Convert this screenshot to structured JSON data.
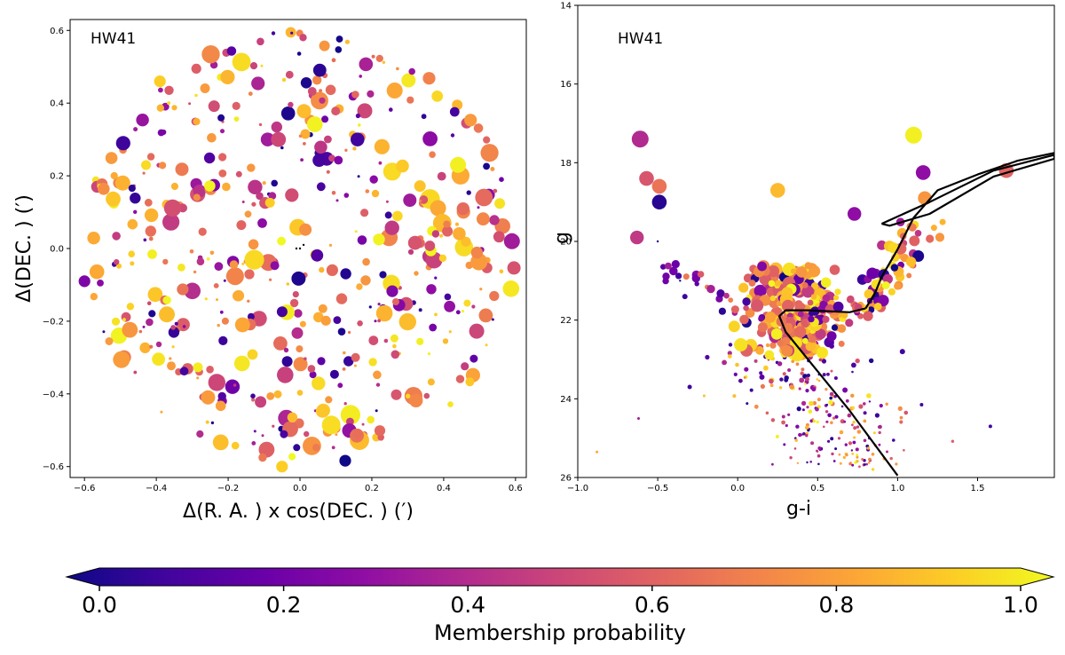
{
  "chart_data": [
    {
      "type": "scatter",
      "panel": "left",
      "title": "HW41",
      "xlabel": "Δ(R. A. ) x cos(DEC. ) (′)",
      "ylabel": "Δ(DEC. ) (′)",
      "xlim": [
        -0.64,
        0.63
      ],
      "ylim": [
        -0.63,
        0.63
      ],
      "xticks": [
        -0.6,
        -0.4,
        -0.2,
        0.0,
        0.2,
        0.4,
        0.6
      ],
      "xtick_labels": [
        "−0.6",
        "−0.4",
        "−0.2",
        "0.0",
        "0.2",
        "0.4",
        "0.6"
      ],
      "yticks": [
        -0.6,
        -0.4,
        -0.2,
        0.0,
        0.2,
        0.4,
        0.6
      ],
      "ytick_labels": [
        "−0.6",
        "−0.4",
        "−0.2",
        "0.0",
        "0.2",
        "0.4",
        "0.6"
      ],
      "field_radius": 0.6,
      "n_points": 520,
      "color_by": "Membership probability",
      "highlighted_points": [
        {
          "x": 0.59,
          "y": 0.02,
          "prob": 0.35,
          "size": 1.0
        },
        {
          "x": -0.6,
          "y": -0.09,
          "prob": 0.25,
          "size": 0.6
        },
        {
          "x": 0.44,
          "y": 0.23,
          "prob": 0.98,
          "size": 1.0
        },
        {
          "x": 0.16,
          "y": 0.3,
          "prob": 0.1,
          "size": 0.8
        },
        {
          "x": -0.09,
          "y": 0.3,
          "prob": 0.35,
          "size": 0.8
        },
        {
          "x": -0.06,
          "y": 0.3,
          "prob": 0.5,
          "size": 0.9
        },
        {
          "x": -0.39,
          "y": 0.46,
          "prob": 0.9,
          "size": 0.6
        },
        {
          "x": -0.16,
          "y": -0.21,
          "prob": 0.8,
          "size": 0.9
        },
        {
          "x": -0.05,
          "y": -0.6,
          "prob": 0.9,
          "size": 0.6
        }
      ]
    },
    {
      "type": "scatter",
      "panel": "right",
      "title": "HW41",
      "xlabel": "g-i",
      "ylabel": "g",
      "xlim": [
        -1.0,
        1.98
      ],
      "ylim": [
        26,
        14
      ],
      "y_inverted": true,
      "xticks": [
        -1.0,
        -0.5,
        0.0,
        0.5,
        1.0,
        1.5
      ],
      "xtick_labels": [
        "−1.0",
        "−0.5",
        "0.0",
        "0.5",
        "1.0",
        "1.5"
      ],
      "yticks": [
        14,
        16,
        18,
        20,
        22,
        24,
        26
      ],
      "ytick_labels": [
        "14",
        "16",
        "18",
        "20",
        "22",
        "24",
        "26"
      ],
      "color_by": "Membership probability",
      "highlighted_points": [
        {
          "x": -0.61,
          "y": 17.4,
          "prob": 0.4,
          "size": 1.0
        },
        {
          "x": -0.57,
          "y": 18.4,
          "prob": 0.55,
          "size": 0.8
        },
        {
          "x": -0.49,
          "y": 18.6,
          "prob": 0.65,
          "size": 0.8
        },
        {
          "x": -0.49,
          "y": 19.0,
          "prob": 0.05,
          "size": 0.8
        },
        {
          "x": -0.63,
          "y": 19.9,
          "prob": 0.45,
          "size": 0.7
        },
        {
          "x": 0.25,
          "y": 18.7,
          "prob": 0.85,
          "size": 0.8
        },
        {
          "x": 1.1,
          "y": 17.3,
          "prob": 0.98,
          "size": 1.0
        },
        {
          "x": 1.16,
          "y": 18.25,
          "prob": 0.3,
          "size": 0.8
        },
        {
          "x": 1.68,
          "y": 18.2,
          "prob": 0.6,
          "size": 0.8
        },
        {
          "x": 0.73,
          "y": 19.3,
          "prob": 0.3,
          "size": 0.7
        },
        {
          "x": 1.17,
          "y": 18.9,
          "prob": 0.75,
          "size": 0.7
        }
      ],
      "isochrone": {
        "ms_branch": [
          [
            1.0,
            25.95
          ],
          [
            0.7,
            24.3
          ],
          [
            0.48,
            23.2
          ],
          [
            0.3,
            22.3
          ],
          [
            0.26,
            21.9
          ],
          [
            0.3,
            21.75
          ],
          [
            0.45,
            21.75
          ],
          [
            0.7,
            21.8
          ],
          [
            0.8,
            21.7
          ]
        ],
        "rgb_branch": [
          [
            0.8,
            21.7
          ],
          [
            0.86,
            21.3
          ],
          [
            0.9,
            20.9
          ],
          [
            1.0,
            20.2
          ],
          [
            1.1,
            19.4
          ],
          [
            1.25,
            18.7
          ],
          [
            1.5,
            18.3
          ],
          [
            1.75,
            17.95
          ],
          [
            1.98,
            17.75
          ]
        ],
        "bump_loop": [
          [
            0.9,
            19.55
          ],
          [
            1.2,
            19.0
          ],
          [
            1.6,
            18.2
          ],
          [
            1.98,
            17.8
          ],
          [
            1.98,
            17.9
          ],
          [
            1.6,
            18.35
          ],
          [
            1.2,
            19.3
          ],
          [
            0.95,
            19.6
          ],
          [
            0.9,
            19.55
          ]
        ]
      },
      "isochrone_color": "#000000"
    }
  ],
  "colorbar": {
    "label": "Membership probability",
    "ticks": [
      0.0,
      0.2,
      0.4,
      0.6,
      0.8,
      1.0
    ],
    "tick_labels": [
      "0.0",
      "0.2",
      "0.4",
      "0.6",
      "0.8",
      "1.0"
    ],
    "colormap": "plasma",
    "extend": "both",
    "stops": [
      "#0d0887",
      "#41049d",
      "#6a00a8",
      "#8f0da4",
      "#b12a90",
      "#cc4778",
      "#e16462",
      "#f2844b",
      "#fca636",
      "#fcce25",
      "#f0f921"
    ]
  }
}
